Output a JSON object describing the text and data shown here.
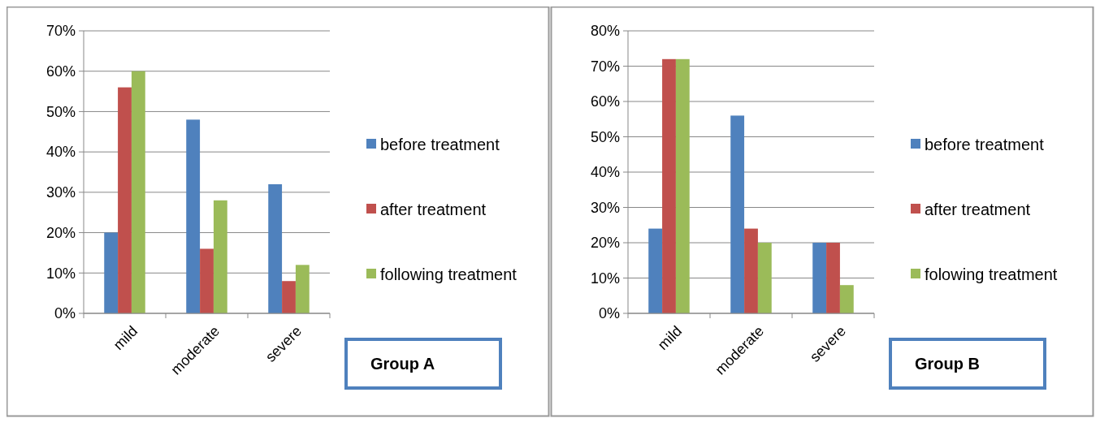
{
  "chart_data": [
    {
      "type": "bar",
      "categories": [
        "mild",
        "moderate",
        "severe"
      ],
      "ylim": [
        0,
        70
      ],
      "yticks": [
        {
          "value": 0,
          "label": "0%"
        },
        {
          "value": 10,
          "label": "10%"
        },
        {
          "value": 20,
          "label": "20%"
        },
        {
          "value": 30,
          "label": "30%"
        },
        {
          "value": 40,
          "label": "40%"
        },
        {
          "value": 50,
          "label": "50%"
        },
        {
          "value": 60,
          "label": "60%"
        },
        {
          "value": 70,
          "label": "70%"
        }
      ],
      "grid": "y",
      "legend": "right",
      "annotations": [
        "Group A"
      ],
      "series": [
        {
          "name": "before treatment",
          "color": "#4f81bd",
          "values": [
            20,
            48,
            32
          ]
        },
        {
          "name": "after treatment",
          "color": "#c0504d",
          "values": [
            56,
            16,
            8
          ]
        },
        {
          "name": "following treatment",
          "color": "#9bbb59",
          "values": [
            60,
            28,
            12
          ]
        }
      ]
    },
    {
      "type": "bar",
      "categories": [
        "mild",
        "moderate",
        "severe"
      ],
      "ylim": [
        0,
        80
      ],
      "yticks": [
        {
          "value": 0,
          "label": "0%"
        },
        {
          "value": 10,
          "label": "10%"
        },
        {
          "value": 20,
          "label": "20%"
        },
        {
          "value": 30,
          "label": "30%"
        },
        {
          "value": 40,
          "label": "40%"
        },
        {
          "value": 50,
          "label": "50%"
        },
        {
          "value": 60,
          "label": "60%"
        },
        {
          "value": 70,
          "label": "70%"
        },
        {
          "value": 80,
          "label": "80%"
        }
      ],
      "grid": "y",
      "legend": "right",
      "annotations": [
        "Group B"
      ],
      "series": [
        {
          "name": "before treatment",
          "color": "#4f81bd",
          "values": [
            24,
            56,
            20
          ]
        },
        {
          "name": "after treatment",
          "color": "#c0504d",
          "values": [
            72,
            24,
            20
          ]
        },
        {
          "name": "folowing treatment",
          "color": "#9bbb59",
          "values": [
            72,
            20,
            8
          ]
        }
      ]
    }
  ]
}
